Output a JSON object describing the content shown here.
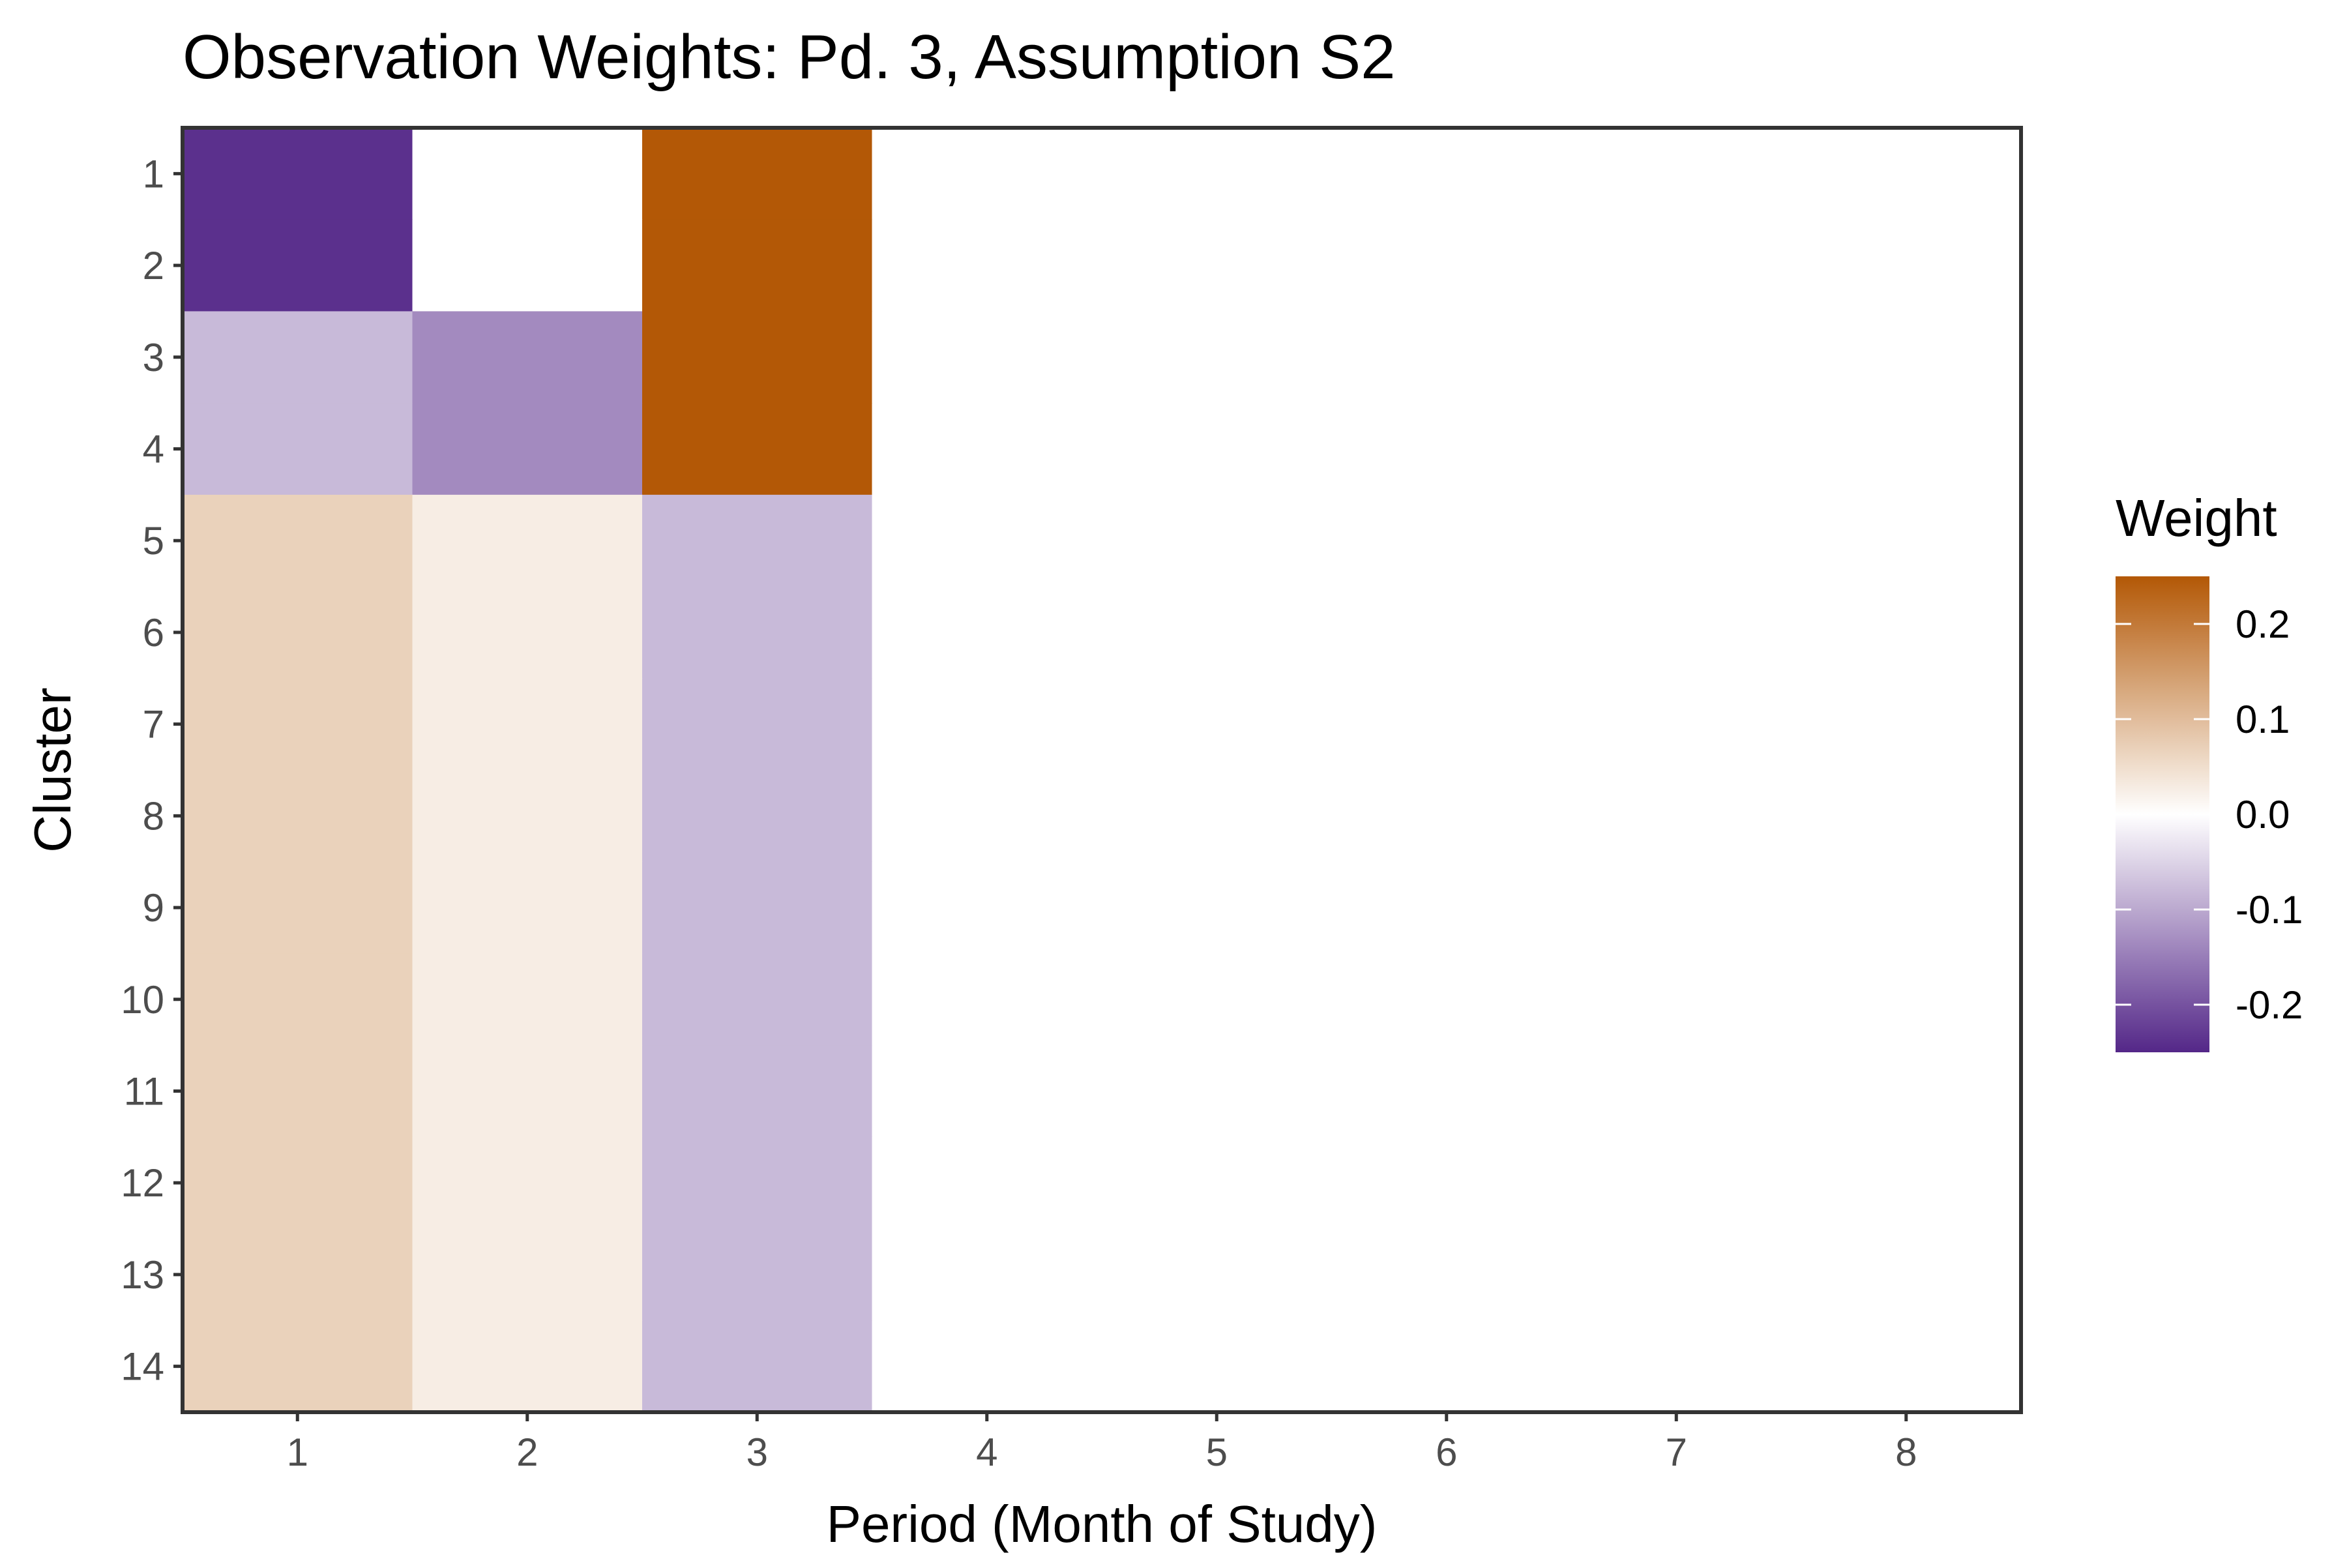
{
  "chart_data": {
    "type": "heatmap",
    "title": "Observation Weights: Pd. 3, Assumption S2",
    "xlabel": "Period (Month of Study)",
    "ylabel": "Cluster",
    "x_categories": [
      "1",
      "2",
      "3",
      "4",
      "5",
      "6",
      "7",
      "8"
    ],
    "y_categories": [
      "1",
      "2",
      "3",
      "4",
      "5",
      "6",
      "7",
      "8",
      "9",
      "10",
      "11",
      "12",
      "13",
      "14"
    ],
    "values": [
      [
        -0.24,
        0.0,
        0.25,
        0.0,
        0.0,
        0.0,
        0.0,
        0.0
      ],
      [
        -0.24,
        0.0,
        0.25,
        0.0,
        0.0,
        0.0,
        0.0,
        0.0
      ],
      [
        -0.08,
        -0.135,
        0.25,
        0.0,
        0.0,
        0.0,
        0.0,
        0.0
      ],
      [
        -0.08,
        -0.135,
        0.25,
        0.0,
        0.0,
        0.0,
        0.0,
        0.0
      ],
      [
        0.068,
        0.027,
        -0.08,
        0.0,
        0.0,
        0.0,
        0.0,
        0.0
      ],
      [
        0.068,
        0.027,
        -0.08,
        0.0,
        0.0,
        0.0,
        0.0,
        0.0
      ],
      [
        0.068,
        0.027,
        -0.08,
        0.0,
        0.0,
        0.0,
        0.0,
        0.0
      ],
      [
        0.068,
        0.027,
        -0.08,
        0.0,
        0.0,
        0.0,
        0.0,
        0.0
      ],
      [
        0.068,
        0.027,
        -0.08,
        0.0,
        0.0,
        0.0,
        0.0,
        0.0
      ],
      [
        0.068,
        0.027,
        -0.08,
        0.0,
        0.0,
        0.0,
        0.0,
        0.0
      ],
      [
        0.068,
        0.027,
        -0.08,
        0.0,
        0.0,
        0.0,
        0.0,
        0.0
      ],
      [
        0.068,
        0.027,
        -0.08,
        0.0,
        0.0,
        0.0,
        0.0,
        0.0
      ],
      [
        0.068,
        0.027,
        -0.08,
        0.0,
        0.0,
        0.0,
        0.0,
        0.0
      ],
      [
        0.068,
        0.027,
        -0.08,
        0.0,
        0.0,
        0.0,
        0.0,
        0.0
      ]
    ],
    "legend": {
      "title": "Weight",
      "ticks": [
        {
          "value": 0.2,
          "label": "0.2"
        },
        {
          "value": 0.1,
          "label": "0.1"
        },
        {
          "value": 0.0,
          "label": "0.0"
        },
        {
          "value": -0.1,
          "label": "-0.1"
        },
        {
          "value": -0.2,
          "label": "-0.2"
        }
      ],
      "range": [
        -0.25,
        0.25
      ],
      "placement": "right"
    },
    "colors": {
      "high": "#b35806",
      "mid": "#ffffff",
      "low": "#542788",
      "axis": "#333333",
      "tick_text": "#4d4d4d"
    },
    "grid": false
  }
}
